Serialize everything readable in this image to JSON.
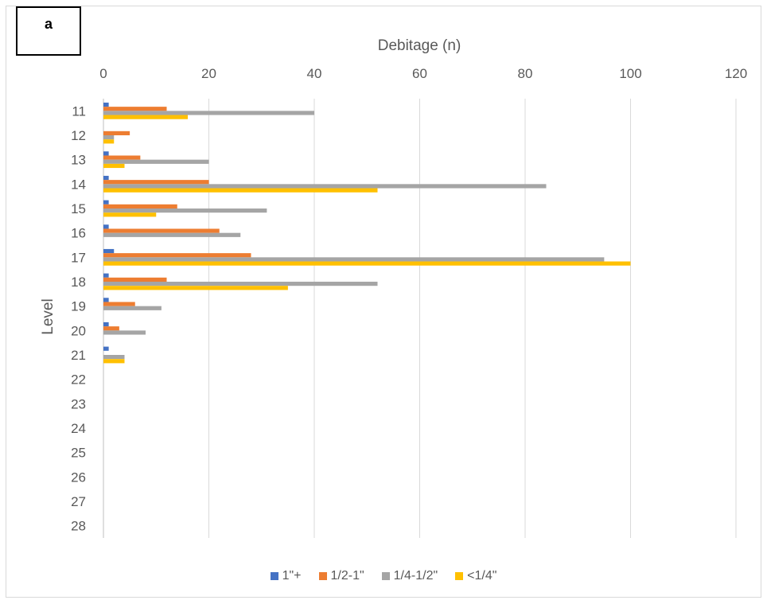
{
  "panel_label": "a",
  "chart_data": {
    "type": "bar",
    "orientation": "horizontal",
    "xlabel": "Debitage (n)",
    "ylabel": "Level",
    "xlim": [
      0,
      120
    ],
    "x_ticks": [
      "0",
      "20",
      "40",
      "60",
      "80",
      "100",
      "120"
    ],
    "x_tick_values": [
      0,
      20,
      40,
      60,
      80,
      100,
      120
    ],
    "x_axis_position": "top",
    "grid": true,
    "legend_position": "bottom",
    "categories": [
      "11",
      "12",
      "13",
      "14",
      "15",
      "16",
      "17",
      "18",
      "19",
      "20",
      "21",
      "22",
      "23",
      "24",
      "25",
      "26",
      "27",
      "28"
    ],
    "series": [
      {
        "name": "1\"+",
        "color": "#4472C4",
        "values": [
          1,
          0,
          1,
          1,
          1,
          1,
          2,
          1,
          1,
          1,
          1,
          0,
          0,
          0,
          0,
          0,
          0,
          0
        ]
      },
      {
        "name": "1/2-1\"",
        "color": "#ED7D31",
        "values": [
          12,
          5,
          7,
          20,
          14,
          22,
          28,
          12,
          6,
          3,
          0,
          0,
          0,
          0,
          0,
          0,
          0,
          0
        ]
      },
      {
        "name": "1/4-1/2\"",
        "color": "#A5A5A5",
        "values": [
          40,
          2,
          20,
          84,
          31,
          26,
          95,
          52,
          11,
          8,
          4,
          0,
          0,
          0,
          0,
          0,
          0,
          0
        ]
      },
      {
        "name": "<1/4\"",
        "color": "#FFC000",
        "values": [
          16,
          2,
          4,
          52,
          10,
          0,
          100,
          35,
          0,
          0,
          4,
          0,
          0,
          0,
          0,
          0,
          0,
          0
        ]
      }
    ]
  }
}
